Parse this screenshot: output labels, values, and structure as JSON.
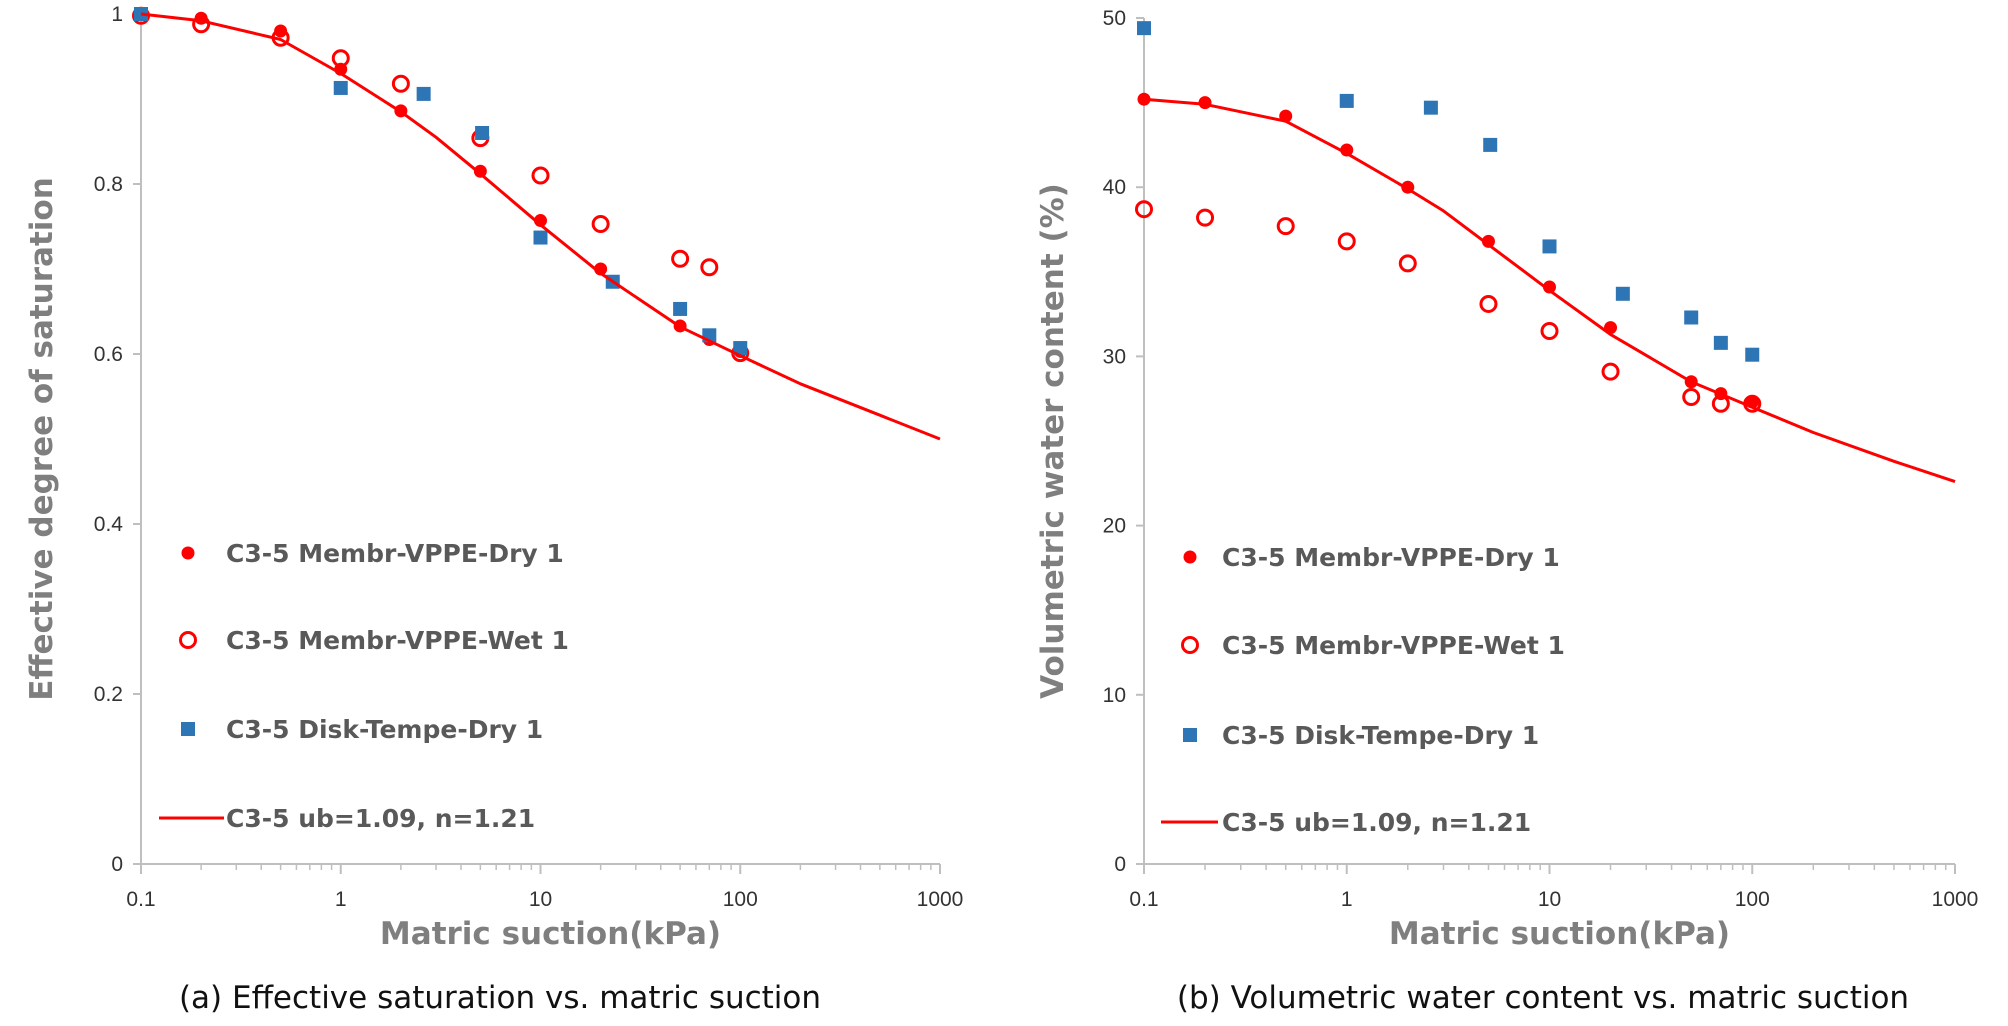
{
  "colors": {
    "red": "#ff0000",
    "blue": "#2e75b6",
    "axis": "#bfbfbf",
    "text": "#7f7f7f"
  },
  "chart_data": [
    {
      "type": "scatter",
      "caption": "(a) Effective saturation vs. matric suction",
      "xlabel": "Matric suction(kPa)",
      "ylabel": "Effective degree of saturation",
      "xscale": "log",
      "xlim": [
        0.1,
        1000
      ],
      "ylim": [
        0,
        1
      ],
      "xticks": [
        0.1,
        1,
        10,
        100,
        1000
      ],
      "xtick_labels": [
        "0.1",
        "1",
        "10",
        "100",
        "1000"
      ],
      "yticks": [
        0,
        0.2,
        0.4,
        0.6,
        0.8,
        1
      ],
      "ytick_labels": [
        "0",
        "0.2",
        "0.4",
        "0.6",
        "0.8",
        "1"
      ],
      "legend_position": "lower-left",
      "series": [
        {
          "name": "C3-5 Membr-VPPE-Dry 1",
          "marker": "filled-circle",
          "color": "#ff0000",
          "x": [
            0.1,
            0.2,
            0.5,
            1,
            2,
            5,
            10,
            20,
            50,
            70,
            100
          ],
          "y": [
            1.0,
            0.995,
            0.98,
            0.935,
            0.886,
            0.815,
            0.757,
            0.7,
            0.633,
            0.617,
            0.603
          ]
        },
        {
          "name": "C3-5  Membr-VPPE-Wet 1",
          "marker": "open-circle",
          "color": "#ff0000",
          "x": [
            0.1,
            0.2,
            0.5,
            1,
            2,
            5,
            10,
            20,
            50,
            70,
            100
          ],
          "y": [
            0.998,
            0.988,
            0.972,
            0.948,
            0.918,
            0.854,
            0.81,
            0.753,
            0.712,
            0.702,
            0.601
          ]
        },
        {
          "name": "C3-5 Disk-Tempe-Dry 1",
          "marker": "filled-square",
          "color": "#2e75b6",
          "x": [
            0.1,
            1,
            2.6,
            5.1,
            10,
            23,
            50,
            70,
            100
          ],
          "y": [
            1.0,
            0.913,
            0.906,
            0.86,
            0.737,
            0.685,
            0.653,
            0.622,
            0.607
          ]
        },
        {
          "name": "C3-5 ub=1.09, n=1.21",
          "marker": "line",
          "color": "#ff0000",
          "x": [
            0.1,
            0.2,
            0.5,
            1,
            2,
            3,
            5,
            10,
            20,
            50,
            100,
            200,
            500,
            1000
          ],
          "y": [
            1.0,
            0.992,
            0.97,
            0.93,
            0.885,
            0.855,
            0.812,
            0.752,
            0.695,
            0.632,
            0.598,
            0.565,
            0.528,
            0.5
          ]
        }
      ]
    },
    {
      "type": "scatter",
      "caption": "(b) Volumetric water content vs. matric suction",
      "xlabel": "Matric suction(kPa)",
      "ylabel": "Volumetric water content (%)",
      "xscale": "log",
      "xlim": [
        0.1,
        1000
      ],
      "ylim": [
        0,
        50
      ],
      "xticks": [
        0.1,
        1,
        10,
        100,
        1000
      ],
      "xtick_labels": [
        "0.1",
        "1",
        "10",
        "100",
        "1000"
      ],
      "yticks": [
        0,
        10,
        20,
        30,
        40,
        50
      ],
      "ytick_labels": [
        "0",
        "10",
        "20",
        "30",
        "40",
        "50"
      ],
      "legend_position": "lower-left",
      "series": [
        {
          "name": "C3-5 Membr-VPPE-Dry 1",
          "marker": "filled-circle",
          "color": "#ff0000",
          "x": [
            0.1,
            0.2,
            0.5,
            1,
            2,
            5,
            10,
            20,
            50,
            70,
            100
          ],
          "y": [
            45.2,
            45.0,
            44.2,
            42.2,
            40.0,
            36.8,
            34.1,
            31.7,
            28.5,
            27.8,
            27.3
          ]
        },
        {
          "name": "C3-5  Membr-VPPE-Wet 1",
          "marker": "open-circle",
          "color": "#ff0000",
          "x": [
            0.1,
            0.2,
            0.5,
            1,
            2,
            5,
            10,
            20,
            50,
            70,
            100
          ],
          "y": [
            38.7,
            38.2,
            37.7,
            36.8,
            35.5,
            33.1,
            31.5,
            29.1,
            27.6,
            27.2,
            27.2
          ]
        },
        {
          "name": "C3-5 Disk-Tempe-Dry 1",
          "marker": "filled-square",
          "color": "#2e75b6",
          "x": [
            0.1,
            1,
            2.6,
            5.1,
            10,
            23,
            50,
            70,
            100
          ],
          "y": [
            49.4,
            45.1,
            44.7,
            42.5,
            36.5,
            33.7,
            32.3,
            30.8,
            30.1
          ]
        },
        {
          "name": "C3-5 ub=1.09, n=1.21",
          "marker": "line",
          "color": "#ff0000",
          "x": [
            0.1,
            0.2,
            0.5,
            1,
            2,
            3,
            5,
            10,
            20,
            50,
            100,
            200,
            500,
            1000
          ],
          "y": [
            45.2,
            44.9,
            43.9,
            42.0,
            39.9,
            38.6,
            36.6,
            33.9,
            31.3,
            28.5,
            27.0,
            25.5,
            23.8,
            22.6
          ]
        }
      ]
    }
  ]
}
